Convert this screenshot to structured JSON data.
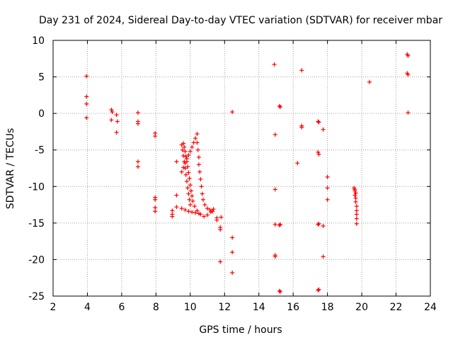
{
  "chart_data": {
    "type": "scatter",
    "title": "Day 231 of 2024, Sidereal Day-to-day VTEC variation (SDTVAR) for receiver mbar",
    "xlabel": "GPS time / hours",
    "ylabel": "SDTVAR / TECUs",
    "xlim": [
      2,
      24
    ],
    "ylim": [
      -25,
      10
    ],
    "x_ticks": [
      2,
      4,
      6,
      8,
      10,
      12,
      14,
      16,
      18,
      20,
      22,
      24
    ],
    "y_ticks": [
      10,
      5,
      0,
      -5,
      -10,
      -15,
      -20,
      -25
    ],
    "x_tick_labels": [
      "2",
      "4",
      "6",
      "8",
      "10",
      "12",
      "14",
      "16",
      "18",
      "20",
      "22",
      "24"
    ],
    "y_tick_labels": [
      "10",
      "5",
      "0",
      "-5",
      "-10",
      "-15",
      "-20",
      "-25"
    ],
    "grid": true,
    "marker": "+",
    "color": "#ff0000",
    "series": [
      {
        "name": "SDTVAR",
        "points": [
          [
            3.95,
            5.1
          ],
          [
            3.95,
            2.3
          ],
          [
            3.95,
            1.3
          ],
          [
            3.95,
            -0.6
          ],
          [
            5.4,
            0.5
          ],
          [
            5.45,
            0.2
          ],
          [
            5.4,
            -0.9
          ],
          [
            5.7,
            -0.2
          ],
          [
            5.75,
            -1.1
          ],
          [
            5.7,
            -2.6
          ],
          [
            6.95,
            0.1
          ],
          [
            6.95,
            -1.1
          ],
          [
            6.95,
            -1.4
          ],
          [
            6.95,
            -6.6
          ],
          [
            6.95,
            -7.3
          ],
          [
            7.95,
            -2.7
          ],
          [
            7.95,
            -3.1
          ],
          [
            7.95,
            -11.5
          ],
          [
            7.95,
            -11.8
          ],
          [
            7.95,
            -12.9
          ],
          [
            7.95,
            -13.4
          ],
          [
            8.95,
            -13.3
          ],
          [
            8.95,
            -13.8
          ],
          [
            8.95,
            -14.1
          ],
          [
            9.2,
            -6.6
          ],
          [
            9.2,
            -11.2
          ],
          [
            9.2,
            -12.8
          ],
          [
            9.6,
            -4.1
          ],
          [
            9.65,
            -4.6
          ],
          [
            9.7,
            -5.2
          ],
          [
            9.75,
            -5.9
          ],
          [
            9.8,
            -6.6
          ],
          [
            9.85,
            -7.3
          ],
          [
            9.9,
            -8.1
          ],
          [
            9.95,
            -8.9
          ],
          [
            10.0,
            -9.8
          ],
          [
            10.05,
            -10.6
          ],
          [
            10.1,
            -11.3
          ],
          [
            10.15,
            -12.0
          ],
          [
            10.25,
            -12.7
          ],
          [
            10.4,
            -13.3
          ],
          [
            10.6,
            -13.8
          ],
          [
            10.8,
            -14.1
          ],
          [
            11.0,
            -13.9
          ],
          [
            11.2,
            -13.5
          ],
          [
            11.35,
            -13.1
          ],
          [
            9.5,
            -4.3
          ],
          [
            9.55,
            -5.0
          ],
          [
            9.6,
            -5.8
          ],
          [
            9.65,
            -6.6
          ],
          [
            9.7,
            -7.5
          ],
          [
            9.75,
            -8.4
          ],
          [
            9.8,
            -9.3
          ],
          [
            9.85,
            -10.2
          ],
          [
            9.9,
            -11.0
          ],
          [
            9.95,
            -11.8
          ],
          [
            10.0,
            -12.5
          ],
          [
            9.5,
            -13.0
          ],
          [
            9.7,
            -13.2
          ],
          [
            9.9,
            -13.4
          ],
          [
            10.1,
            -13.5
          ],
          [
            10.3,
            -13.6
          ],
          [
            10.5,
            -13.7
          ],
          [
            9.5,
            -8.0
          ],
          [
            9.6,
            -7.4
          ],
          [
            9.7,
            -6.8
          ],
          [
            9.8,
            -6.2
          ],
          [
            9.9,
            -5.7
          ],
          [
            10.0,
            -5.2
          ],
          [
            10.1,
            -4.6
          ],
          [
            10.2,
            -4.0
          ],
          [
            10.3,
            -3.4
          ],
          [
            10.4,
            -2.8
          ],
          [
            10.4,
            -4.0
          ],
          [
            10.45,
            -5.0
          ],
          [
            10.5,
            -6.0
          ],
          [
            10.5,
            -7.0
          ],
          [
            10.55,
            -8.0
          ],
          [
            10.6,
            -9.0
          ],
          [
            10.65,
            -10.0
          ],
          [
            10.7,
            -11.0
          ],
          [
            10.75,
            -11.8
          ],
          [
            10.85,
            -12.5
          ],
          [
            11.0,
            -13.0
          ],
          [
            11.15,
            -13.2
          ],
          [
            11.3,
            -13.4
          ],
          [
            11.55,
            -14.3
          ],
          [
            11.55,
            -14.6
          ],
          [
            11.8,
            -14.2
          ],
          [
            11.75,
            -15.6
          ],
          [
            11.75,
            -15.9
          ],
          [
            11.75,
            -20.3
          ],
          [
            12.45,
            0.2
          ],
          [
            12.45,
            -17.0
          ],
          [
            12.45,
            -19.0
          ],
          [
            12.45,
            -21.8
          ],
          [
            14.9,
            6.7
          ],
          [
            14.95,
            -2.9
          ],
          [
            14.95,
            -10.4
          ],
          [
            14.95,
            -15.2
          ],
          [
            14.95,
            -19.4
          ],
          [
            14.95,
            -19.6
          ],
          [
            15.2,
            1.0
          ],
          [
            15.25,
            0.9
          ],
          [
            15.2,
            -15.3
          ],
          [
            15.25,
            -15.2
          ],
          [
            15.2,
            -24.3
          ],
          [
            15.25,
            -24.4
          ],
          [
            16.5,
            5.9
          ],
          [
            16.5,
            -1.7
          ],
          [
            16.5,
            -1.9
          ],
          [
            16.25,
            -6.8
          ],
          [
            17.45,
            -1.1
          ],
          [
            17.5,
            -1.2
          ],
          [
            17.45,
            -5.3
          ],
          [
            17.5,
            -5.6
          ],
          [
            17.45,
            -15.2
          ],
          [
            17.5,
            -15.1
          ],
          [
            17.45,
            -24.2
          ],
          [
            17.5,
            -24.1
          ],
          [
            17.75,
            -2.2
          ],
          [
            17.75,
            -15.4
          ],
          [
            17.75,
            -19.6
          ],
          [
            18.0,
            -8.7
          ],
          [
            18.0,
            -10.2
          ],
          [
            18.0,
            -11.8
          ],
          [
            19.55,
            -10.2
          ],
          [
            19.6,
            -10.4
          ],
          [
            19.6,
            -10.6
          ],
          [
            19.65,
            -10.9
          ],
          [
            19.6,
            -11.2
          ],
          [
            19.65,
            -11.6
          ],
          [
            19.65,
            -12.1
          ],
          [
            19.7,
            -12.7
          ],
          [
            19.7,
            -13.3
          ],
          [
            19.7,
            -13.8
          ],
          [
            19.7,
            -14.4
          ],
          [
            19.7,
            -15.1
          ],
          [
            20.45,
            4.3
          ],
          [
            22.65,
            8.1
          ],
          [
            22.7,
            7.9
          ],
          [
            22.65,
            5.5
          ],
          [
            22.7,
            5.3
          ],
          [
            22.7,
            0.1
          ]
        ]
      }
    ]
  }
}
